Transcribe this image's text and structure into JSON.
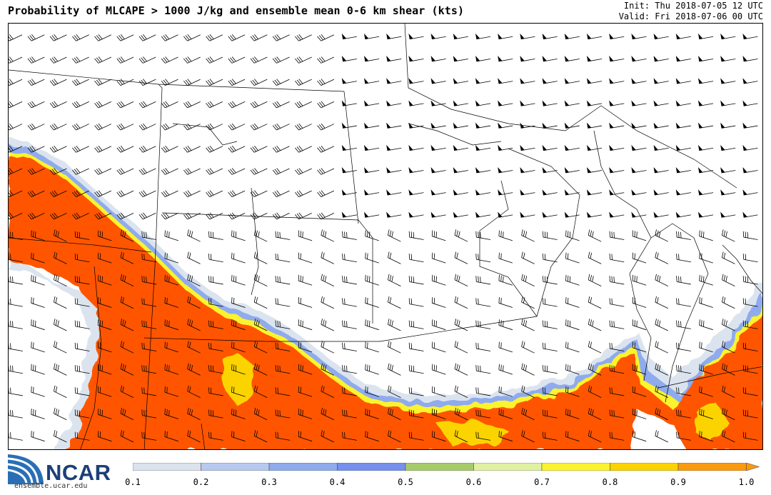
{
  "header": {
    "title": "Probability of MLCAPE > 1000 J/kg and ensemble mean 0-6 km shear (kts)",
    "init": "Init: Thu 2018-07-05 12 UTC",
    "valid": "Valid: Fri 2018-07-06 00 UTC"
  },
  "logo": {
    "name": "NCAR",
    "url": "ensemble.ucar.edu"
  },
  "colorbar": {
    "labels": [
      "0.1",
      "0.2",
      "0.3",
      "0.4",
      "0.5",
      "0.6",
      "0.7",
      "0.8",
      "0.9",
      "1.0"
    ],
    "colors": [
      "#dbe4ee",
      "#b7c9ee",
      "#8fabee",
      "#7790ee",
      "#a6cb6b",
      "#e1f1a3",
      "#fbf32e",
      "#fbd400",
      "#fa9a0f",
      "#fa9a0f"
    ]
  },
  "colors": {
    "high_probability": "#ff5500",
    "coastline": "#000000",
    "brand": "#1d3f78"
  }
}
